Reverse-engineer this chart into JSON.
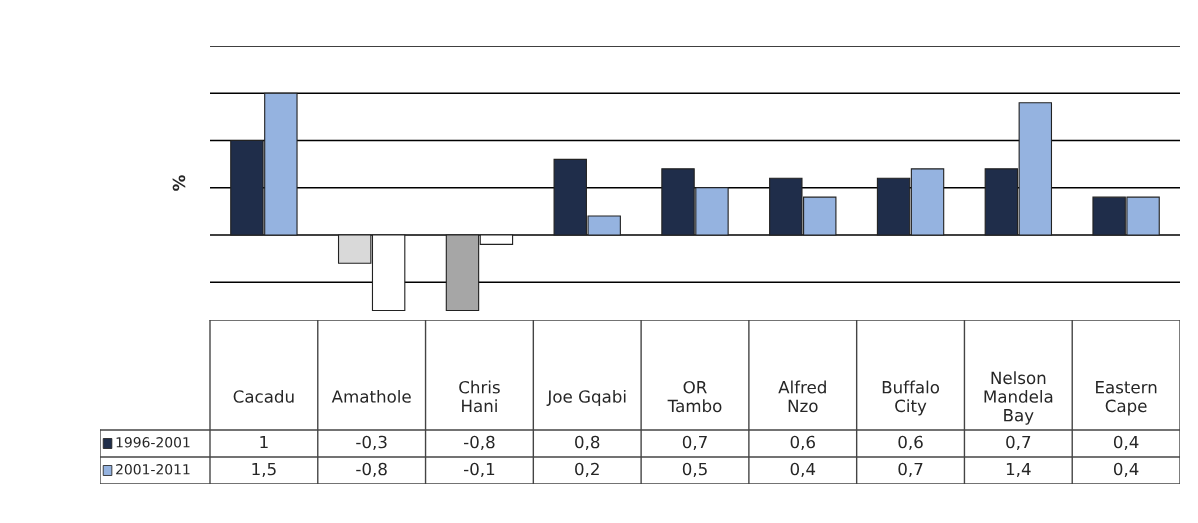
{
  "chart_data": {
    "type": "bar",
    "ylabel": "%",
    "categories": [
      "Cacadu",
      "Amathole",
      "Chris\nHani",
      "Joe Gqabi",
      "OR\nTambo",
      "Alfred\nNzo",
      "Buffalo\nCity",
      "Nelson\nMandela\nBay",
      "Eastern\nCape"
    ],
    "series": [
      {
        "name": "1996-2001",
        "color": "#1f2d4a",
        "colors": [
          "#1f2d4a",
          "#d9d9d9",
          "#a6a6a6",
          "#1f2d4a",
          "#1f2d4a",
          "#1f2d4a",
          "#1f2d4a",
          "#1f2d4a",
          "#1f2d4a"
        ],
        "values": [
          1,
          -0.3,
          -0.8,
          0.8,
          0.7,
          0.6,
          0.6,
          0.7,
          0.4
        ],
        "value_labels": [
          "1",
          "-0,3",
          "-0,8",
          "0,8",
          "0,7",
          "0,6",
          "0,6",
          "0,7",
          "0,4"
        ]
      },
      {
        "name": "2001-2011",
        "color": "#95b3e0",
        "colors": [
          "#95b3e0",
          "#ffffff",
          "#ffffff",
          "#95b3e0",
          "#95b3e0",
          "#95b3e0",
          "#95b3e0",
          "#95b3e0",
          "#95b3e0"
        ],
        "values": [
          1.5,
          -0.8,
          -0.1,
          0.2,
          0.5,
          0.4,
          0.7,
          1.4,
          0.4
        ],
        "value_labels": [
          "1,5",
          "-0,8",
          "-0,1",
          "0,2",
          "0,5",
          "0,4",
          "0,7",
          "1,4",
          "0,4"
        ]
      }
    ],
    "ylim": [
      -0.9,
      2
    ],
    "yticks": [
      {
        "value": -0.5,
        "label": null
      },
      {
        "value": 0,
        "label": null
      },
      {
        "value": 0.5,
        "label": null
      },
      {
        "value": 1,
        "label": null
      },
      {
        "value": 1.5,
        "label": null
      },
      {
        "value": 2,
        "label": null
      }
    ],
    "grid": "y",
    "legend": "bottom left"
  }
}
